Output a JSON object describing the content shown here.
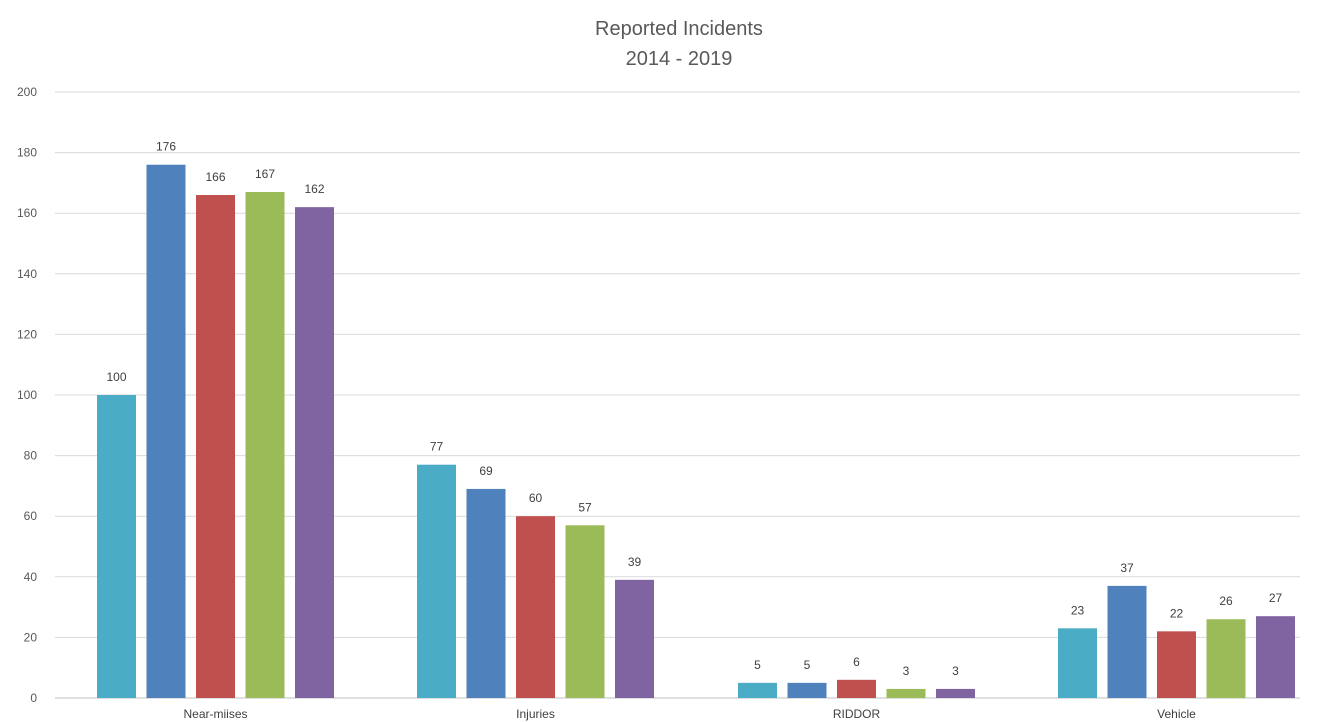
{
  "chart_data": {
    "type": "bar",
    "title": "Reported Incidents",
    "subtitle": "2014 - 2019",
    "xlabel": "",
    "ylabel": "",
    "categories": [
      "Near-miises",
      "Injuries",
      "RIDDOR",
      "Vehicle"
    ],
    "series": [
      {
        "color": "#4bacc6",
        "values": [
          100,
          77,
          5,
          23
        ]
      },
      {
        "color": "#4f81bd",
        "values": [
          176,
          69,
          5,
          37
        ]
      },
      {
        "color": "#c0504d",
        "values": [
          166,
          60,
          6,
          22
        ]
      },
      {
        "color": "#9bbb59",
        "values": [
          167,
          57,
          3,
          26
        ]
      },
      {
        "color": "#8064a2",
        "values": [
          162,
          39,
          3,
          27
        ]
      }
    ],
    "ylim": [
      0,
      200
    ],
    "yticks": [
      0,
      20,
      40,
      60,
      80,
      100,
      120,
      140,
      160,
      180,
      200
    ],
    "grid": true,
    "data_labels": true,
    "legend": "none"
  }
}
